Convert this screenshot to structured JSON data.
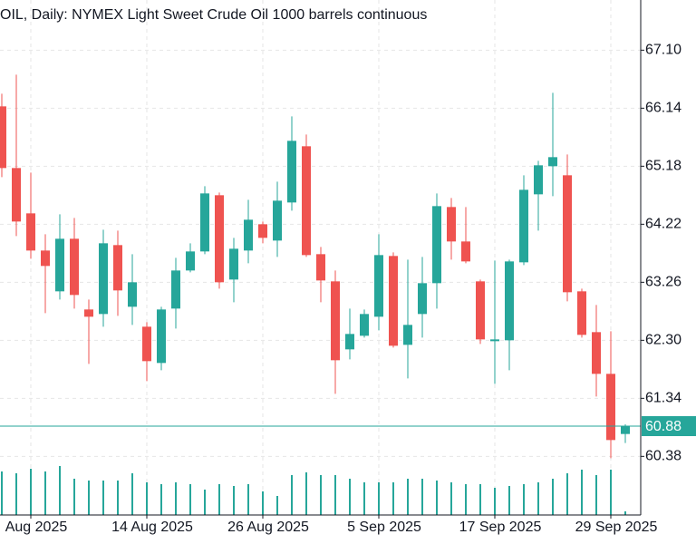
{
  "chart_data": {
    "type": "candlestick",
    "title": "OIL, Daily:  NYMEX Light Sweet Crude Oil 1000 barrels continuous",
    "categories": [
      null,
      null,
      "Aug 2025",
      null,
      null,
      null,
      null,
      null,
      null,
      null,
      "14 Aug 2025",
      null,
      null,
      null,
      null,
      null,
      null,
      null,
      "26 Aug 2025",
      null,
      null,
      null,
      null,
      null,
      null,
      null,
      "5 Sep 2025",
      null,
      null,
      null,
      null,
      null,
      null,
      null,
      "17 Sep 2025",
      null,
      null,
      null,
      null,
      null,
      null,
      null,
      "29 Sep 2025",
      null
    ],
    "open": [
      66.17,
      65.15,
      64.4,
      63.785,
      63.11,
      63.98,
      62.81,
      62.735,
      63.875,
      62.855,
      62.525,
      61.925,
      62.825,
      63.455,
      63.77,
      64.7,
      63.305,
      63.785,
      64.22,
      63.95,
      64.58,
      65.51,
      63.725,
      63.275,
      62.15,
      62.375,
      62.69,
      63.695,
      62.225,
      62.735,
      63.245,
      64.505,
      63.935,
      63.275,
      62.285,
      62.3,
      63.59,
      64.715,
      65.18,
      65.03,
      63.11,
      62.435,
      61.745,
      60.75
    ],
    "high": [
      66.38,
      66.695,
      65.075,
      64.055,
      64.385,
      64.325,
      62.975,
      64.13,
      64.115,
      63.725,
      62.6,
      62.855,
      63.665,
      63.905,
      64.85,
      64.745,
      63.995,
      64.625,
      64.265,
      64.925,
      66.005,
      65.705,
      63.845,
      63.455,
      62.825,
      62.81,
      64.055,
      63.755,
      63.635,
      63.68,
      64.73,
      64.655,
      64.505,
      63.305,
      63.62,
      63.635,
      65.03,
      65.27,
      66.395,
      65.375,
      63.155,
      62.885,
      62.45,
      60.91
    ],
    "low": [
      65.0,
      64.025,
      63.65,
      62.75,
      62.975,
      62.825,
      61.91,
      62.525,
      62.705,
      62.555,
      61.625,
      61.805,
      62.495,
      63.425,
      63.725,
      63.155,
      62.93,
      63.575,
      63.905,
      63.68,
      64.445,
      63.68,
      62.93,
      61.415,
      61.985,
      62.345,
      62.465,
      62.18,
      61.67,
      62.345,
      62.825,
      63.635,
      63.575,
      62.24,
      61.58,
      61.805,
      63.545,
      64.115,
      64.685,
      62.945,
      62.345,
      61.37,
      60.35,
      60.6
    ],
    "close": [
      65.15,
      64.265,
      63.785,
      63.53,
      63.98,
      63.05,
      62.69,
      63.905,
      63.125,
      63.26,
      61.955,
      62.81,
      63.455,
      63.77,
      64.73,
      63.26,
      63.815,
      64.295,
      63.995,
      64.61,
      65.6,
      63.71,
      63.29,
      61.97,
      62.405,
      62.735,
      63.71,
      62.21,
      62.555,
      63.245,
      64.52,
      63.935,
      63.605,
      62.315,
      62.315,
      63.605,
      64.79,
      65.195,
      65.33,
      63.095,
      62.39,
      61.745,
      60.65,
      60.88
    ],
    "volume": [
      48,
      46,
      51,
      48,
      54,
      40,
      38,
      38,
      38,
      46,
      36,
      34,
      36,
      34,
      28,
      34,
      32,
      34,
      26,
      21,
      44,
      47,
      44,
      44,
      40,
      36,
      36,
      36,
      40,
      40,
      38,
      36,
      34,
      34,
      30,
      32,
      34,
      36,
      40,
      46,
      50,
      44,
      50,
      4
    ],
    "up_color": "#26a69a",
    "down_color": "#ef5350",
    "volume_color": "#26a69a",
    "current_price": 60.88,
    "ylim": [
      59.41,
      67.93
    ],
    "yticks": [
      {
        "value": 60.38,
        "label": "60.38"
      },
      {
        "value": 61.34,
        "label": "61.34"
      },
      {
        "value": 62.3,
        "label": "62.30"
      },
      {
        "value": 63.26,
        "label": "63.26"
      },
      {
        "value": 64.22,
        "label": "64.22"
      },
      {
        "value": 65.18,
        "label": "65.18"
      },
      {
        "value": 66.14,
        "label": "66.14"
      },
      {
        "value": 67.1,
        "label": "67.10"
      }
    ],
    "grid": true
  }
}
